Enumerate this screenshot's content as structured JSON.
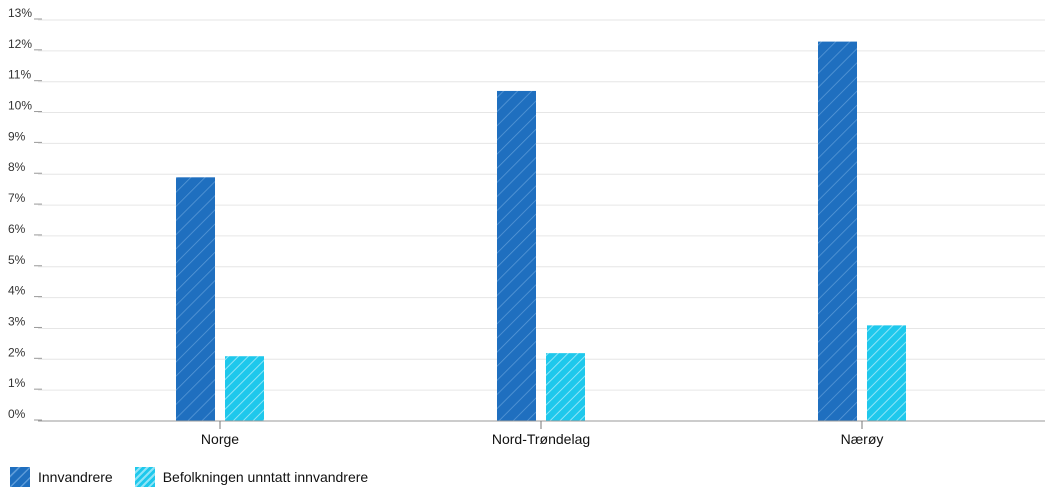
{
  "chart_data": {
    "type": "bar",
    "categories": [
      "Norge",
      "Nord-Trøndelag",
      "Nærøy"
    ],
    "series": [
      {
        "name": "Innvandrere",
        "values": [
          7.9,
          10.7,
          12.3
        ],
        "color": "#1f6fbf"
      },
      {
        "name": "Befolkningen unntatt innvandrere",
        "values": [
          2.1,
          2.2,
          3.1
        ],
        "color": "#1ec8ec"
      }
    ],
    "ylim": [
      0,
      13
    ],
    "yticks": [
      "0%",
      "1%",
      "2%",
      "3%",
      "4%",
      "5%",
      "6%",
      "7%",
      "8%",
      "9%",
      "10%",
      "11%",
      "12%",
      "13%"
    ],
    "grid": true,
    "legend": "bottom-left"
  }
}
